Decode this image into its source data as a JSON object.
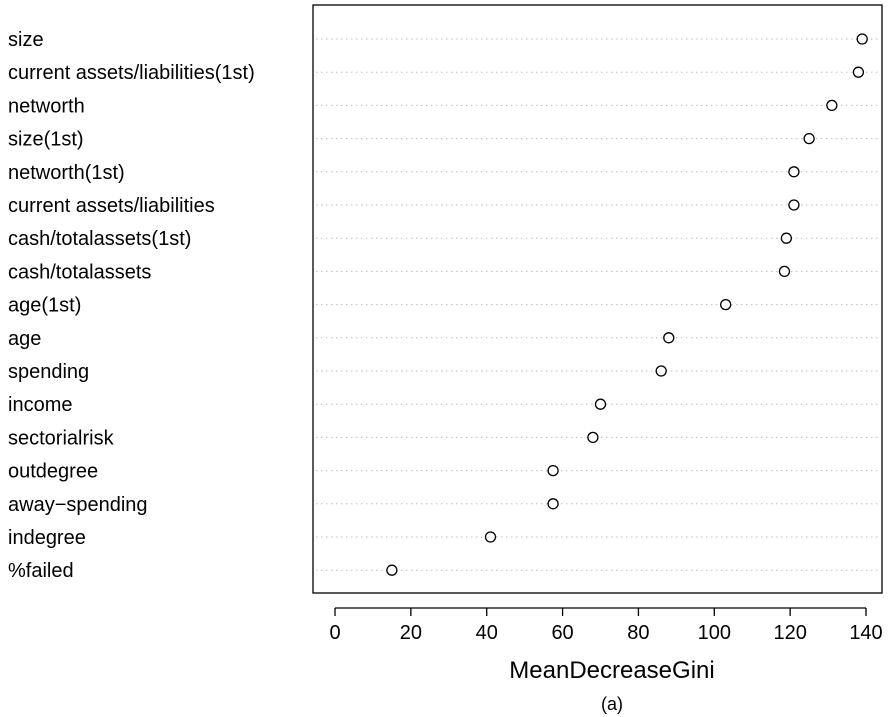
{
  "chart_data": {
    "type": "scatter",
    "xlabel": "MeanDecreaseGini",
    "caption": "(a)",
    "xlim": [
      0,
      140
    ],
    "xticks": [
      "0",
      "20",
      "40",
      "60",
      "80",
      "100",
      "120",
      "140"
    ],
    "grid": "dotted horizontal guide lines",
    "categories": [
      "size",
      "current assets/liabilities(1st)",
      "networth",
      "size(1st)",
      "networth(1st)",
      "current assets/liabilities",
      "cash/totalassets(1st)",
      "cash/totalassets",
      "age(1st)",
      "age",
      "spending",
      "income",
      "sectorialrisk",
      "outdegree",
      "away−spending",
      "indegree",
      "%failed"
    ],
    "values": [
      139,
      138,
      131,
      125,
      121,
      121,
      119,
      118.5,
      103,
      88,
      86,
      70,
      68,
      57.5,
      57.5,
      41,
      15
    ],
    "marker": "open-circle"
  }
}
